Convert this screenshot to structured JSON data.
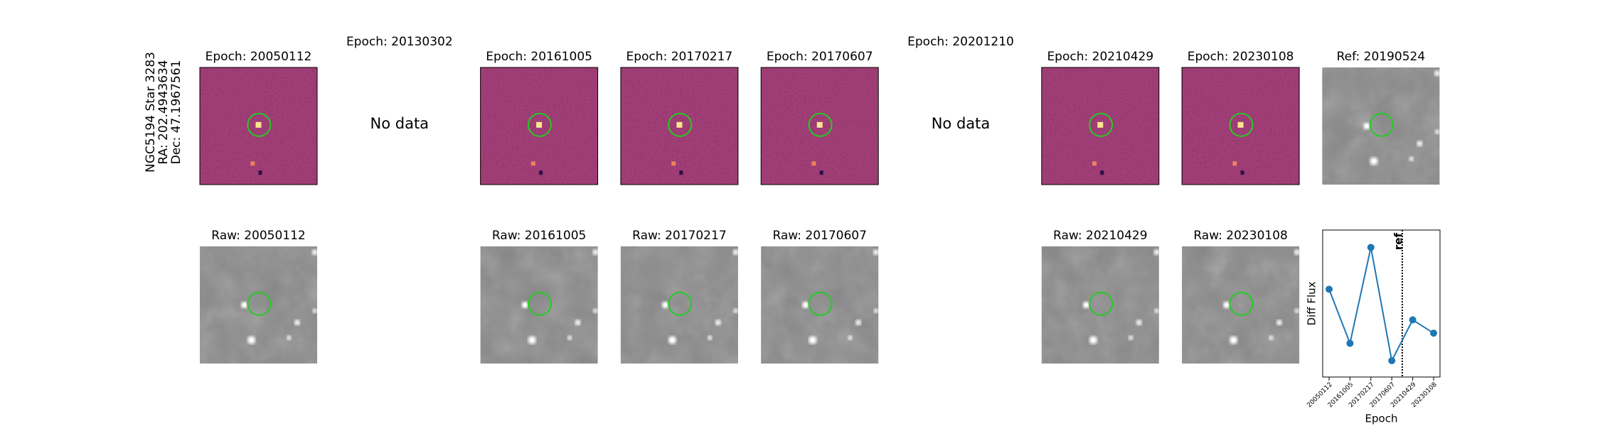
{
  "row_label": [
    "NGC5194 Star 3283",
    "RA: 202.4943634",
    "Dec: 47.1967561"
  ],
  "diff_panels": [
    {
      "title": "Epoch: 20050112",
      "cmap": "magma"
    },
    {
      "title": "Epoch: 20130302",
      "no_data": "No data"
    },
    {
      "title": "Epoch: 20161005",
      "cmap": "magma"
    },
    {
      "title": "Epoch: 20170217",
      "cmap": "magma"
    },
    {
      "title": "Epoch: 20170607",
      "cmap": "magma"
    },
    {
      "title": "Epoch: 20201210",
      "no_data": "No data"
    },
    {
      "title": "Epoch: 20210429",
      "cmap": "magma"
    },
    {
      "title": "Epoch: 20230108",
      "cmap": "magma"
    },
    {
      "title": "Ref: 20190524",
      "cmap": "gray"
    }
  ],
  "raw_panels": [
    {
      "title": "Raw: 20050112"
    },
    null,
    {
      "title": "Raw: 20161005"
    },
    {
      "title": "Raw: 20170217"
    },
    {
      "title": "Raw: 20170607"
    },
    null,
    {
      "title": "Raw: 20210429"
    },
    {
      "title": "Raw: 20230108"
    },
    null
  ],
  "chart_data": {
    "type": "line",
    "xlabel": "Epoch",
    "ylabel": "Diff Flux",
    "categories": [
      "20050112",
      "20161005",
      "20170217",
      "20170607",
      "20210429",
      "20230108"
    ],
    "series": [
      {
        "color": "#1f77b4",
        "values": [
          86,
          33,
          127,
          16,
          56,
          43
        ]
      }
    ],
    "ylim": [
      0,
      144
    ],
    "ref_date": "20190524",
    "ref_label": "ref"
  }
}
